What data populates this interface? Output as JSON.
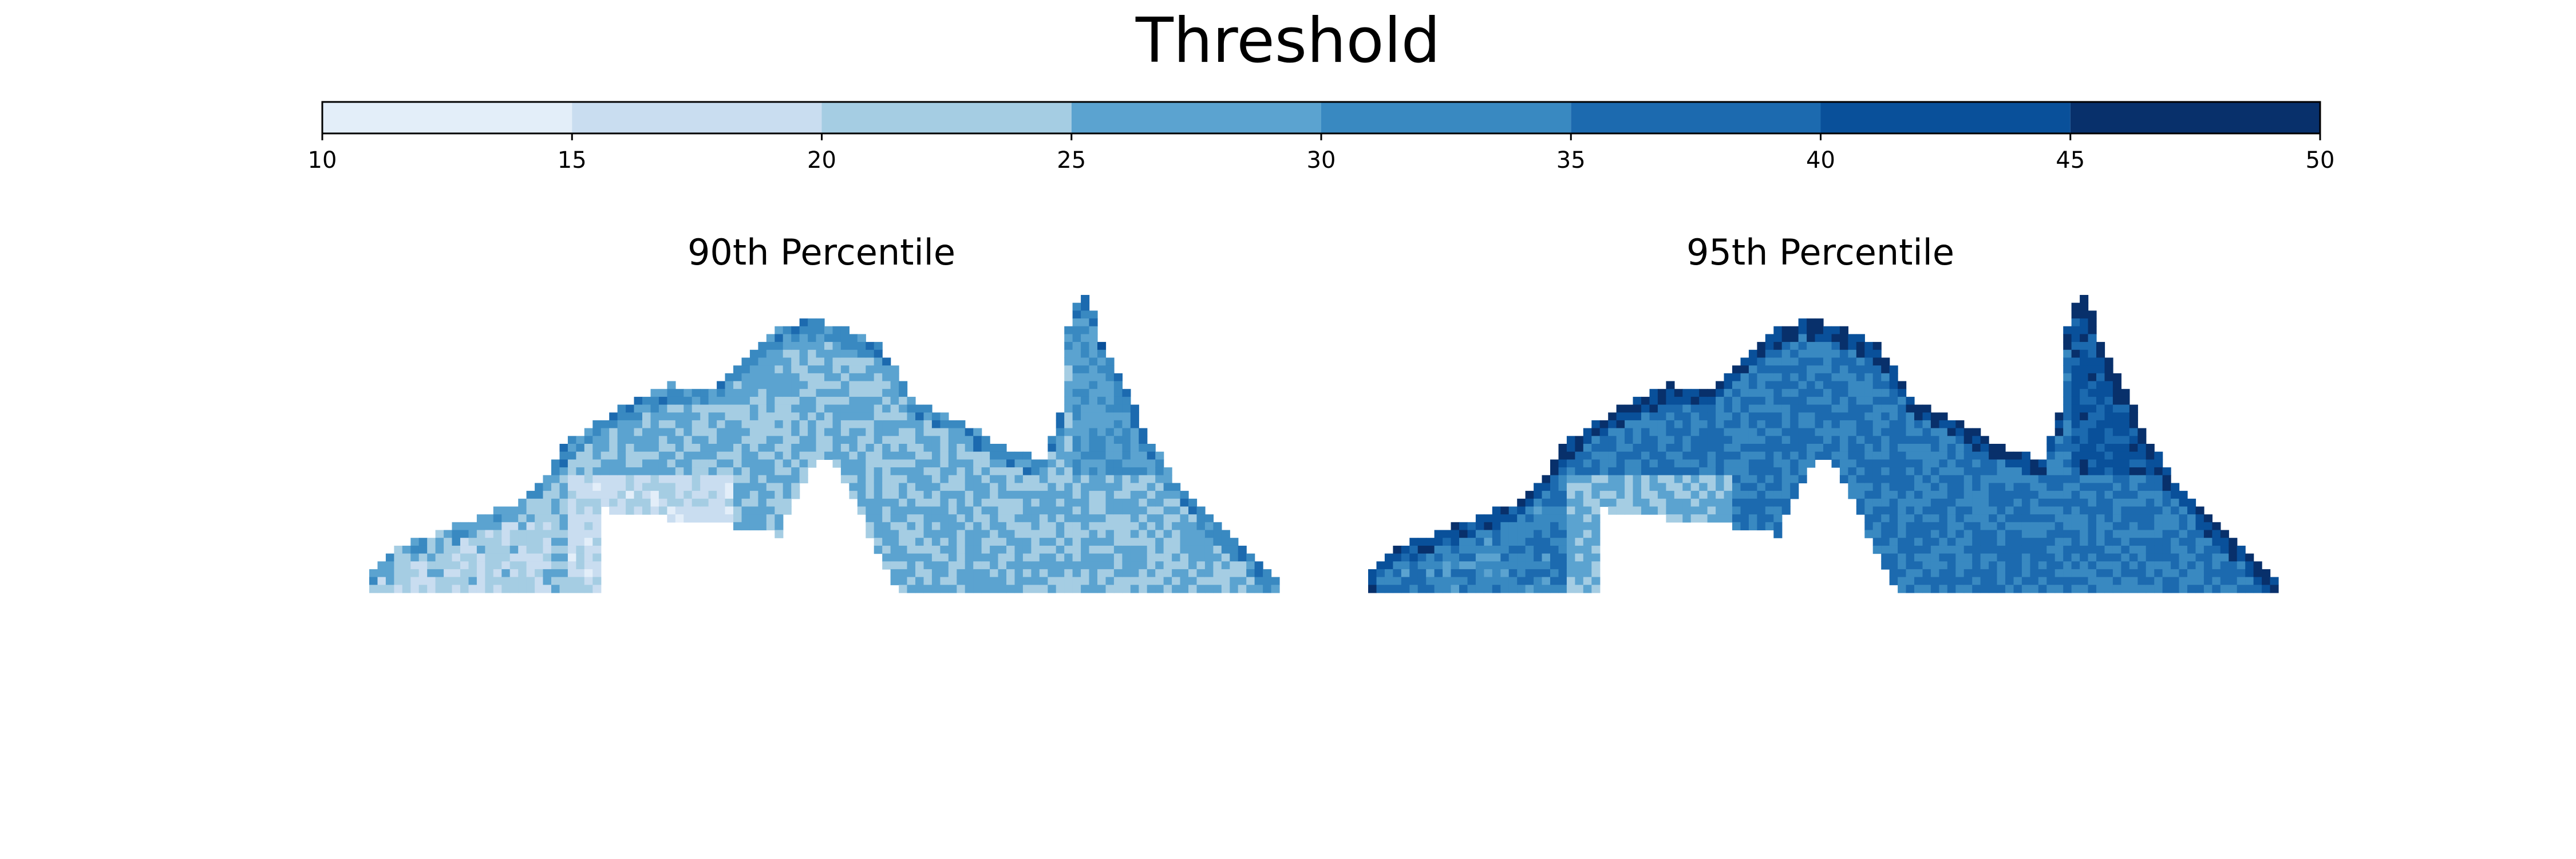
{
  "title": "Threshold",
  "colorbar": {
    "ticks": [
      10,
      15,
      20,
      25,
      30,
      35,
      40,
      45,
      50
    ],
    "bin_colors": [
      "#e3eef9",
      "#c9ddf0",
      "#a5cde3",
      "#5ba3d0",
      "#3989c1",
      "#1c6aaf",
      "#09509a",
      "#08306b"
    ]
  },
  "panels": [
    {
      "title": "90th Percentile",
      "shading": "lighter"
    },
    {
      "title": "95th Percentile",
      "shading": "darker"
    }
  ],
  "chart_data": {
    "type": "heatmap",
    "title": "Threshold",
    "colorscale": "Blues",
    "colorbar_range": [
      10,
      50
    ],
    "colorbar_ticks": [
      10,
      15,
      20,
      25,
      30,
      35,
      40,
      45,
      50
    ],
    "panels": [
      {
        "name": "90th Percentile",
        "typical_value_range": [
          20,
          35
        ]
      },
      {
        "name": "95th Percentile",
        "typical_value_range": [
          28,
          48
        ]
      }
    ]
  }
}
